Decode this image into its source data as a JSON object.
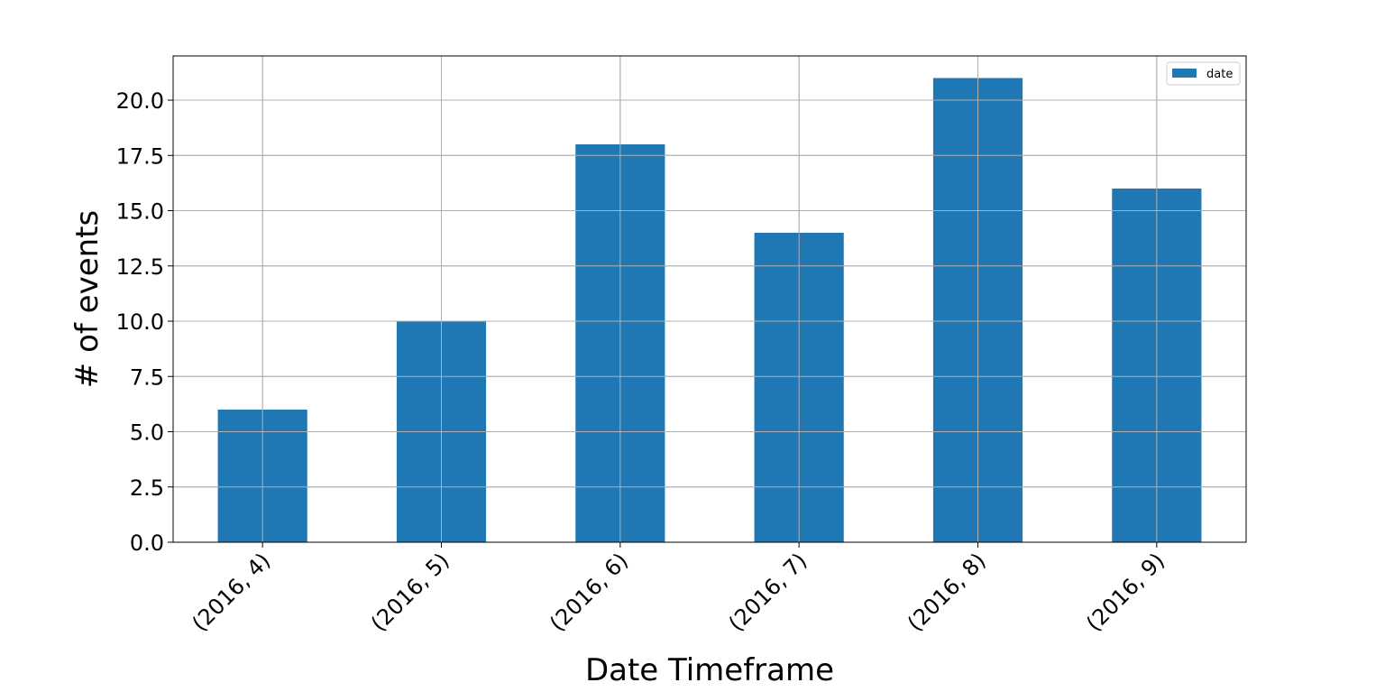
{
  "chart_data": {
    "type": "bar",
    "categories": [
      "(2016, 4)",
      "(2016, 5)",
      "(2016, 6)",
      "(2016, 7)",
      "(2016, 8)",
      "(2016, 9)"
    ],
    "series": [
      {
        "name": "date",
        "values": [
          6,
          10,
          18,
          14,
          21,
          16
        ],
        "color": "#1f77b4"
      }
    ],
    "title": "",
    "xlabel": "Date Timeframe",
    "ylabel": "# of events",
    "ylim": [
      0,
      22
    ],
    "yticks": [
      0,
      2.5,
      5,
      7.5,
      10,
      12.5,
      15,
      17.5,
      20
    ],
    "ytick_labels": [
      "0.0",
      "2.5",
      "5.0",
      "7.5",
      "10.0",
      "12.5",
      "15.0",
      "17.5",
      "20.0"
    ],
    "grid": true,
    "legend": "top-right",
    "x_tick_rotation": "45 degrees"
  }
}
